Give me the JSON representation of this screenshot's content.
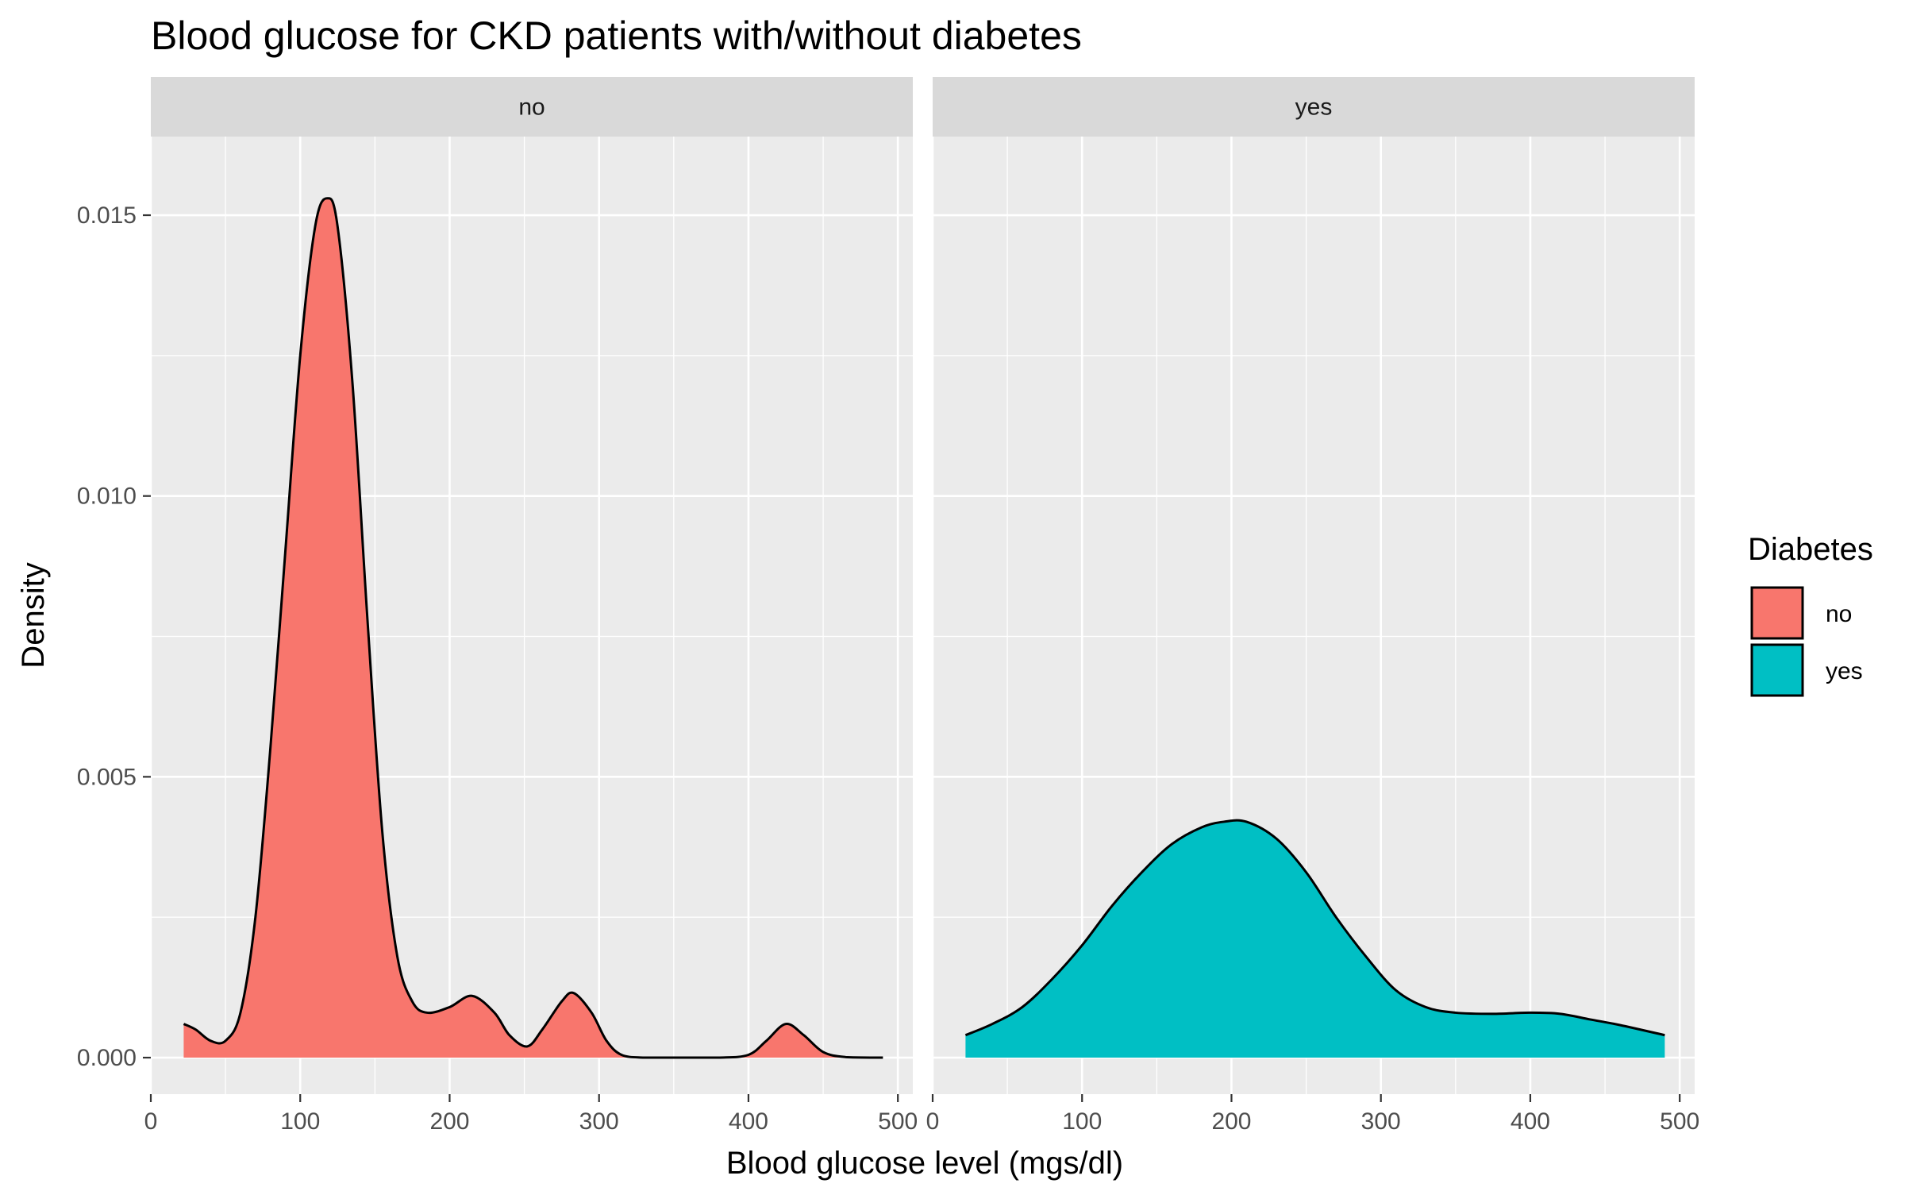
{
  "chart_data": {
    "type": "area",
    "title": "Blood glucose for CKD patients with/without diabetes",
    "xlabel": "Blood glucose level (mgs/dl)",
    "ylabel": "Density",
    "xlim": [
      0,
      510
    ],
    "ylim": [
      -0.00065,
      0.0164
    ],
    "x_ticks": [
      0,
      100,
      200,
      300,
      400,
      500
    ],
    "x_tick_labels": [
      "0",
      "100",
      "200",
      "300",
      "400",
      "500"
    ],
    "y_ticks": [
      0,
      0.005,
      0.01,
      0.015
    ],
    "y_tick_labels": [
      "0.000",
      "0.005",
      "0.010",
      "0.015"
    ],
    "grid": true,
    "legend": {
      "title": "Diabetes",
      "position": "right",
      "entries": [
        {
          "label": "no",
          "color": "#F8766D"
        },
        {
          "label": "yes",
          "color": "#00BFC4"
        }
      ]
    },
    "facets": [
      {
        "label": "no",
        "color": "#F8766D",
        "x": [
          22,
          30,
          40,
          50,
          60,
          70,
          80,
          90,
          100,
          110,
          118,
          125,
          135,
          145,
          155,
          165,
          175,
          185,
          200,
          215,
          230,
          240,
          252,
          262,
          275,
          283,
          295,
          305,
          315,
          330,
          350,
          380,
          400,
          412,
          425,
          437,
          450,
          465,
          490
        ],
        "y": [
          0.0006,
          0.0005,
          0.0003,
          0.0003,
          0.0008,
          0.0025,
          0.0055,
          0.009,
          0.0125,
          0.0148,
          0.0153,
          0.0148,
          0.012,
          0.0078,
          0.004,
          0.0018,
          0.001,
          0.0008,
          0.0009,
          0.0011,
          0.0008,
          0.0004,
          0.0002,
          0.0005,
          0.001,
          0.00115,
          0.0008,
          0.0003,
          5e-05,
          0.0,
          0.0,
          0.0,
          5e-05,
          0.0003,
          0.0006,
          0.0004,
          0.0001,
          1e-05,
          0.0
        ]
      },
      {
        "label": "yes",
        "color": "#00BFC4",
        "x": [
          22,
          40,
          60,
          80,
          100,
          120,
          140,
          160,
          180,
          195,
          210,
          230,
          250,
          270,
          290,
          310,
          330,
          350,
          375,
          400,
          420,
          440,
          460,
          490
        ],
        "y": [
          0.0004,
          0.0006,
          0.0009,
          0.0014,
          0.002,
          0.0027,
          0.0033,
          0.0038,
          0.0041,
          0.0042,
          0.0042,
          0.0039,
          0.0033,
          0.0025,
          0.0018,
          0.0012,
          0.0009,
          0.0008,
          0.00078,
          0.0008,
          0.00078,
          0.00068,
          0.00058,
          0.0004
        ]
      }
    ]
  }
}
